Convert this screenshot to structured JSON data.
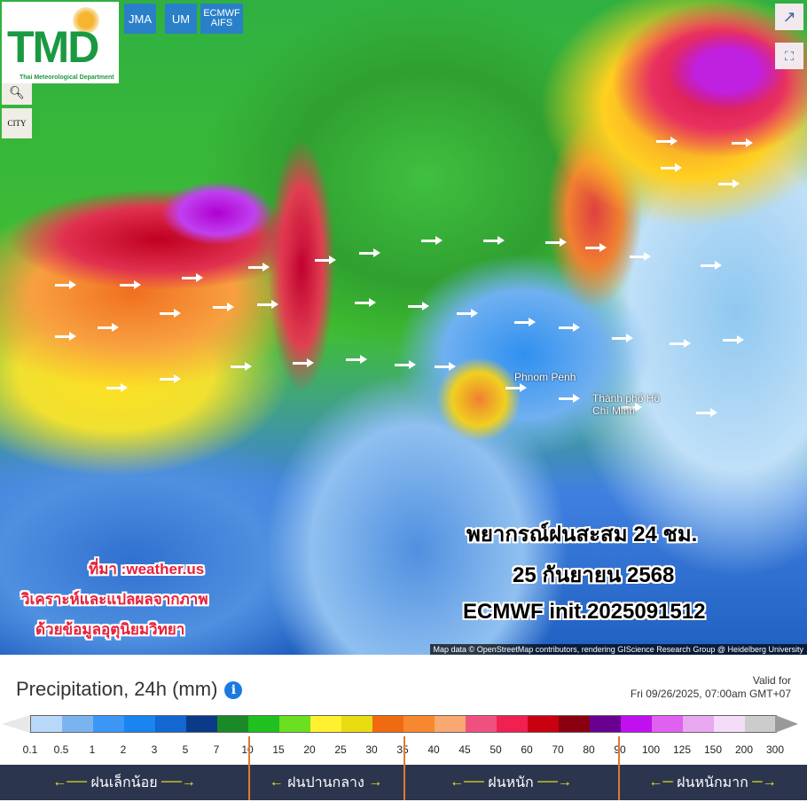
{
  "header": {
    "logo_text": "TMD",
    "logo_subtitle": "Thai Meteorological Department",
    "model_buttons": [
      "JMA",
      "UM",
      "ECMWF AIFS"
    ],
    "zoom_icon": "magnifier-minus-icon",
    "city_toggle_label": "CITY",
    "share_icon": "share-icon",
    "fullscreen_icon": "expand-icon"
  },
  "map": {
    "cities": [
      "Phnom Penh",
      "Thành phố Hồ Chí Minh"
    ],
    "overlay_lines": [
      "พยากรณ์ฝนสะสม 24 ชม.",
      "25 กันยายน 2568",
      "ECMWF init.2025091512"
    ],
    "source_lines": [
      "ที่มา :weather.us",
      "วิเคราะห์และแปลผลจากภาพ",
      "ด้วยข้อมูลอุตุนิยมวิทยา"
    ],
    "attribution": "Map data © OpenStreetMap contributors, rendering GIScience Research Group @ Heidelberg University"
  },
  "legend": {
    "title": "Precipitation, 24h (mm)",
    "info_icon": "info-icon",
    "valid_label": "Valid for",
    "valid_time": "Fri 09/26/2025, 07:00am GMT+07",
    "ticks": [
      "0.1",
      "0.5",
      "1",
      "2",
      "3",
      "5",
      "7",
      "10",
      "15",
      "20",
      "25",
      "30",
      "35",
      "40",
      "45",
      "50",
      "60",
      "70",
      "80",
      "90",
      "100",
      "125",
      "150",
      "200",
      "300"
    ],
    "colors": [
      "#b8d8fa",
      "#7ab4f0",
      "#3c96f5",
      "#1a84f0",
      "#1466d0",
      "#0a3a88",
      "#1a8a28",
      "#20c020",
      "#6ae020",
      "#fff030",
      "#e8dc10",
      "#f06a10",
      "#f88830",
      "#f8a870",
      "#f05080",
      "#f02050",
      "#c80010",
      "#8a0010",
      "#6a0090",
      "#c010f0",
      "#e060f0",
      "#e8a8f0",
      "#f4dcf8",
      "#cccccc"
    ],
    "left_cap_color": "#e8e8e8",
    "right_cap_color": "#999999",
    "categories": [
      "ฝนเล็กน้อย",
      "ฝนปานกลาง",
      "ฝนหนัก",
      "ฝนหนักมาก"
    ]
  }
}
